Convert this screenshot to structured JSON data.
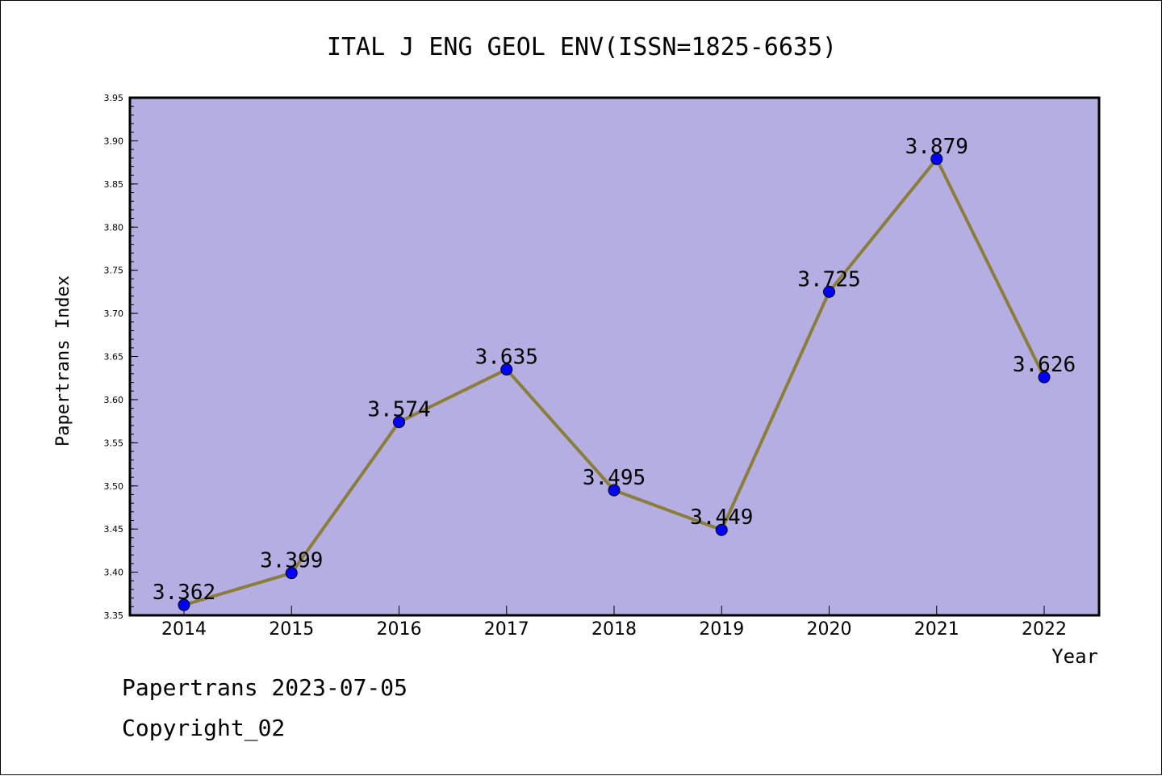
{
  "chart_data": {
    "type": "line",
    "title": "ITAL J ENG GEOL ENV(ISSN=1825-6635)",
    "xlabel": "Year",
    "ylabel": "Papertrans Index",
    "categories": [
      "2014",
      "2015",
      "2016",
      "2017",
      "2018",
      "2019",
      "2020",
      "2021",
      "2022"
    ],
    "values": [
      3.362,
      3.399,
      3.574,
      3.635,
      3.495,
      3.449,
      3.725,
      3.879,
      3.626
    ],
    "data_labels": [
      "3.362",
      "3.399",
      "3.574",
      "3.635",
      "3.495",
      "3.449",
      "3.725",
      "3.879",
      "3.626"
    ],
    "ylim": [
      3.35,
      3.95
    ],
    "yticks": [
      "3.35",
      "3.40",
      "3.45",
      "3.50",
      "3.55",
      "3.60",
      "3.65",
      "3.70",
      "3.75",
      "3.80",
      "3.85",
      "3.90",
      "3.95"
    ],
    "grid": false,
    "colors": {
      "plot_background": "#b5aee3",
      "line": "#8b7d3a",
      "marker": "#0000ff"
    }
  },
  "footer": {
    "source": "Papertrans 2023-07-05",
    "copyright": "Copyright_02"
  }
}
